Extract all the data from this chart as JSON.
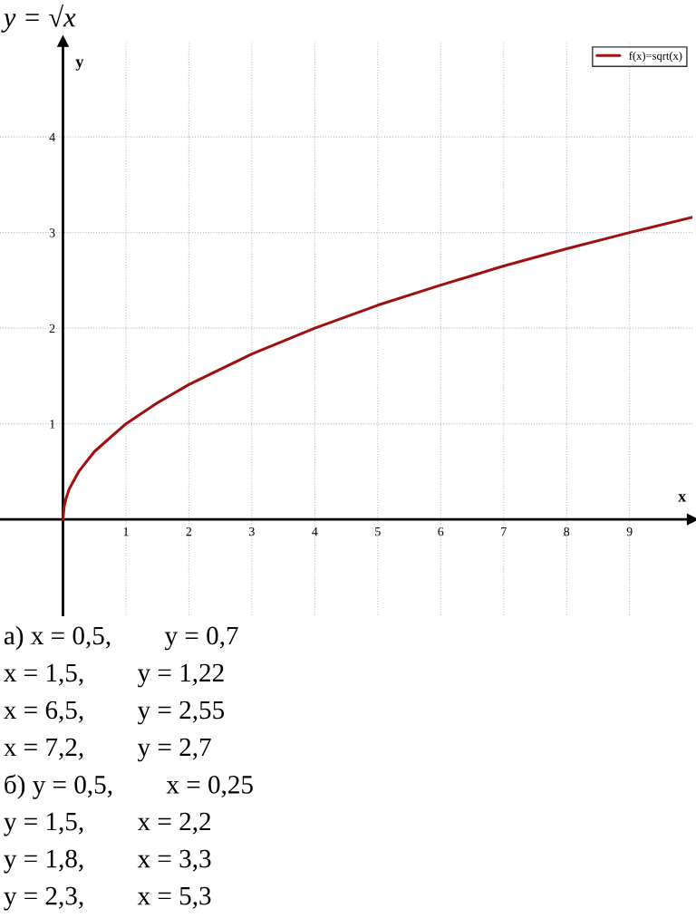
{
  "chart_data": {
    "type": "line",
    "title": "y = √x",
    "xlabel": "x",
    "ylabel": "y",
    "x": [
      0,
      0.02,
      0.05,
      0.1,
      0.25,
      0.5,
      1,
      1.5,
      2,
      3,
      4,
      5,
      6,
      7,
      8,
      9,
      10
    ],
    "series": [
      {
        "name": "f(x)=sqrt(x)",
        "color": "#a01010",
        "values": [
          0,
          0.14,
          0.22,
          0.32,
          0.5,
          0.71,
          1,
          1.22,
          1.41,
          1.73,
          2,
          2.24,
          2.45,
          2.65,
          2.83,
          3,
          3.16
        ]
      }
    ],
    "xlim": [
      -1,
      10
    ],
    "ylim": [
      -1,
      5
    ],
    "xticks": [
      1,
      2,
      3,
      4,
      5,
      6,
      7,
      8,
      9
    ],
    "yticks": [
      1,
      2,
      3,
      4
    ],
    "grid": true,
    "legend": "top right",
    "marker": "none",
    "line_style": "solid",
    "annotations": [
      "а) x = 0,5,        y = 0,7",
      "x = 1,5,        y = 1,22",
      "x = 6,5,        y = 2,55",
      "x = 7,2,        y = 2,7",
      "б) y = 0,5,        x = 0,25",
      "y = 1,5,        x = 2,2",
      "y = 1,8,        x = 3,3",
      "y = 2,3,        x = 5,3"
    ]
  }
}
